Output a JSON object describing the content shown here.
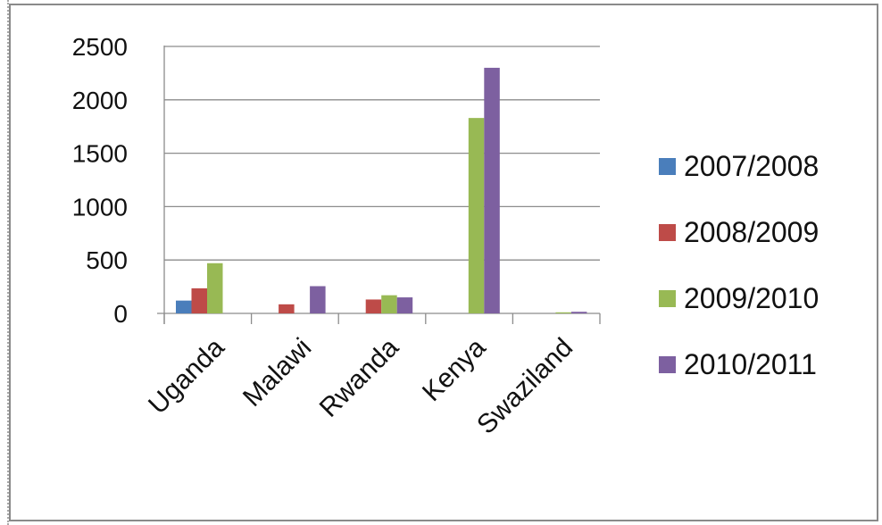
{
  "chart_data": {
    "type": "bar",
    "categories": [
      "Uganda",
      "Malawi",
      "Rwanda",
      "Kenya",
      "Swaziland"
    ],
    "series": [
      {
        "name": "2007/2008",
        "color": "#4a7ebb",
        "values": [
          120,
          0,
          0,
          0,
          0
        ]
      },
      {
        "name": "2008/2009",
        "color": "#be4b48",
        "values": [
          235,
          85,
          130,
          0,
          0
        ]
      },
      {
        "name": "2009/2010",
        "color": "#98b954",
        "values": [
          470,
          0,
          170,
          1830,
          10
        ]
      },
      {
        "name": "2010/2011",
        "color": "#7d60a0",
        "values": [
          0,
          255,
          150,
          2300,
          15
        ]
      }
    ],
    "y_ticks": [
      "0",
      "500",
      "1000",
      "1500",
      "2000",
      "2500"
    ],
    "ylim": [
      0,
      2500
    ],
    "grid": true,
    "legend_position": "right"
  }
}
